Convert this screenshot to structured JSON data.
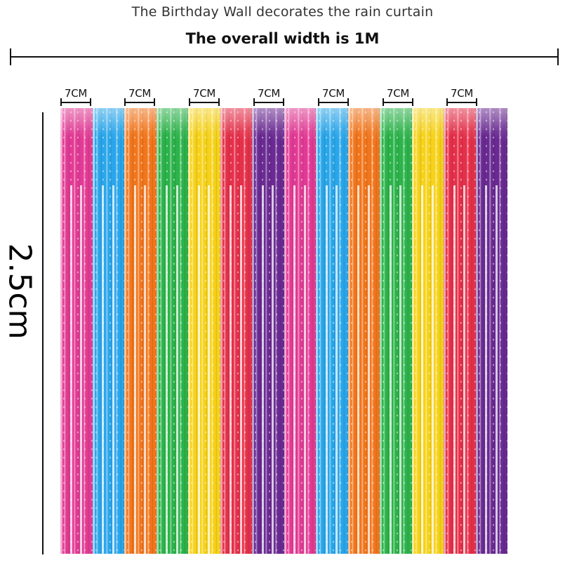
{
  "header": {
    "subtitle": "The Birthday Wall decorates the rain curtain",
    "title": "The overall width is 1M"
  },
  "dimensions": {
    "height_label": "2.5cm",
    "segment_labels": [
      "7CM",
      "7CM",
      "7CM",
      "7CM",
      "7CM",
      "7CM",
      "7CM"
    ]
  },
  "curtain": {
    "strip_colors": [
      "#e23a94",
      "#2aa6ea",
      "#f2761c",
      "#2cb34a",
      "#f6d21a",
      "#e5304a",
      "#6a2a92",
      "#e23a94",
      "#2aa6ea",
      "#f2761c",
      "#2cb34a",
      "#f6d21a",
      "#e5304a",
      "#6a2a92"
    ]
  }
}
